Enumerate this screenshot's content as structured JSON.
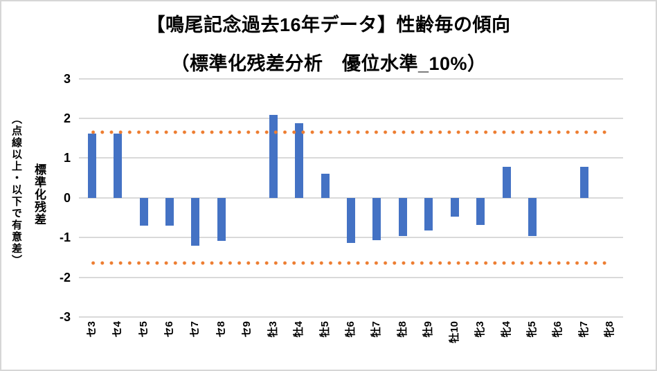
{
  "chart_data": {
    "type": "bar",
    "title": "【鳴尾記念過去16年データ】性齢毎の傾向",
    "subtitle": "（標準化残差分析　優位水準_10%）",
    "ylabel": "標準化残差",
    "ylabel_note": "（点線以上・以下で有意差）",
    "categories": [
      "セ3",
      "セ4",
      "セ5",
      "セ6",
      "セ7",
      "セ8",
      "セ9",
      "牡3",
      "牡4",
      "牡5",
      "牡6",
      "牡7",
      "牡8",
      "牡9",
      "牡10",
      "牝3",
      "牝4",
      "牝5",
      "牝6",
      "牝7",
      "牝8"
    ],
    "values": [
      1.61,
      1.61,
      -0.71,
      -0.71,
      -1.2,
      -1.09,
      0,
      2.08,
      1.88,
      0.61,
      -1.13,
      -1.06,
      -0.96,
      -0.82,
      -0.48,
      -0.68,
      0.78,
      -0.96,
      0,
      0.78,
      0
    ],
    "ylim": [
      -3,
      3
    ],
    "yticks": [
      3,
      2,
      1,
      0,
      -1,
      -2,
      -3
    ],
    "significance_threshold": 1.645,
    "grid": "horizontal",
    "legend": "none",
    "colors": {
      "bar": "#4472C4",
      "threshold_line": "#ED7D31",
      "gridline": "#D9D9D9",
      "text": "#000000",
      "background": "#FFFFFF",
      "border": "#D6D6D6"
    }
  }
}
